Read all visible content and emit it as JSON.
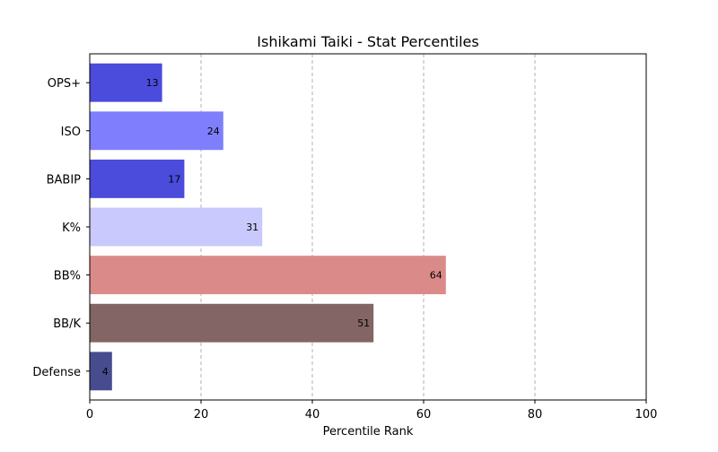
{
  "chart_data": {
    "type": "bar",
    "orientation": "horizontal",
    "title": "Ishikami Taiki - Stat Percentiles",
    "xlabel": "Percentile Rank",
    "ylabel": "",
    "xlim": [
      0,
      100
    ],
    "xticks": [
      0,
      20,
      40,
      60,
      80,
      100
    ],
    "grid": "x dashed",
    "categories": [
      "OPS+",
      "ISO",
      "BABIP",
      "K%",
      "BB%",
      "BB/K",
      "Defense"
    ],
    "values": [
      13,
      24,
      17,
      31,
      64,
      51,
      4
    ],
    "colors": [
      "#4b4bdc",
      "#7f7ffd",
      "#4b4bdc",
      "#c9c9fd",
      "#db8a8a",
      "#836565",
      "#474c8f"
    ]
  }
}
